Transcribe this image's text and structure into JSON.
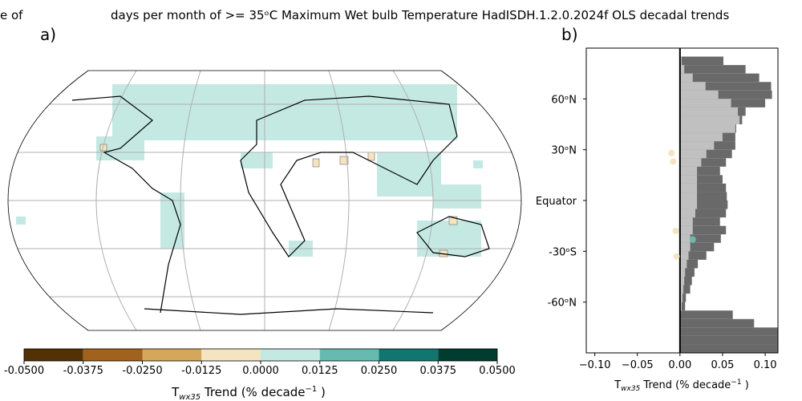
{
  "chart_data": [
    {
      "type": "map",
      "title": "days per month of >= 35ᵒC Maximum Wet bulb Temperature HadISDH.1.2.0.2024f OLS decadal trends",
      "left_fragment": "e of",
      "panel_label": "a)",
      "colorbar": {
        "bounds": [
          -0.05,
          -0.0375,
          -0.025,
          -0.0125,
          0,
          0.0125,
          0.025,
          0.0375,
          0.05
        ],
        "colors": [
          "#543005",
          "#a0621d",
          "#d4a75a",
          "#f5e4c0",
          "#c4e9e3",
          "#67bab0",
          "#117670",
          "#003c30"
        ],
        "xlim": [
          -0.05,
          0.05
        ],
        "xticks": [
          {
            "value": -0.05,
            "label": "-0.0500"
          },
          {
            "value": -0.0375,
            "label": "-0.0375"
          },
          {
            "value": -0.025,
            "label": "-0.0250"
          },
          {
            "value": -0.0125,
            "label": "-0.0125"
          },
          {
            "value": 0,
            "label": "0.0000"
          },
          {
            "value": 0.0125,
            "label": "0.0125"
          },
          {
            "value": 0.025,
            "label": "0.0250"
          },
          {
            "value": 0.0375,
            "label": "0.0375"
          },
          {
            "value": 0.05,
            "label": "0.0500"
          }
        ],
        "xlabel": {
          "main": "T",
          "sub": "wx35",
          "text": " Trend (% decade",
          "sup": "−1",
          "end": " )"
        }
      }
    },
    {
      "type": "profile",
      "panel_label": "b)",
      "y": [
        82.5,
        77.5,
        72.5,
        67.5,
        62.5,
        57.5,
        52.5,
        47.5,
        42.5,
        37.5,
        32.5,
        27.5,
        22.5,
        17.5,
        12.5,
        7.5,
        2.5,
        -2.5,
        -7.5,
        -12.5,
        -17.5,
        -22.5,
        -27.5,
        -32.5,
        -37.5,
        -42.5,
        -47.5,
        -52.5,
        -57.5,
        -62.5,
        -67.5,
        -72.5,
        -77.5,
        -82.5,
        -87.5
      ],
      "series": [
        {
          "color": "#696969",
          "values": [
            0.051,
            0.077,
            0.093,
            0.107,
            0.108,
            0.1,
            0.077,
            0.073,
            0.066,
            0.065,
            0.065,
            0.061,
            0.054,
            0.047,
            0.05,
            0.054,
            0.055,
            0.056,
            0.054,
            0.047,
            0.054,
            0.048,
            0.04,
            0.031,
            0.021,
            0.017,
            0.014,
            0.012,
            0.007,
            0.006,
            0.062,
            0.087,
            0.12,
            0.12,
            0.12
          ]
        },
        {
          "color": "#c0c0c0",
          "values": [
            0.002,
            0.005,
            0.015,
            0.03,
            0.045,
            0.06,
            0.068,
            0.07,
            0.065,
            0.05,
            0.04,
            0.031,
            0.025,
            0.02,
            0.02,
            0.02,
            0.02,
            0.02,
            0.018,
            0.015,
            0.015,
            0.012,
            0.012,
            0.01,
            0.008,
            0.006,
            0.005,
            0.004,
            0.003,
            0.002,
            0,
            0,
            0,
            0,
            0
          ]
        }
      ],
      "points": {
        "x": [
          -0.01,
          -0.008,
          -0.005,
          0.015,
          -0.004
        ],
        "y": [
          28,
          23,
          -18,
          -23,
          -33
        ],
        "colors": [
          "#f5e4c0",
          "#f5e4c0",
          "#f5e4c0",
          "#67bab0",
          "#f5e4c0"
        ]
      },
      "xlim": [
        -0.11,
        0.115
      ],
      "ylim": [
        -90,
        90
      ],
      "xticks": [
        {
          "value": -0.1,
          "label": "−0.10"
        },
        {
          "value": -0.05,
          "label": "−0.05"
        },
        {
          "value": 0,
          "label": "0.00"
        },
        {
          "value": 0.05,
          "label": "0.05"
        },
        {
          "value": 0.1,
          "label": "0.10"
        }
      ],
      "yticks": [
        {
          "value": 60,
          "label": "60ᵒN"
        },
        {
          "value": 30,
          "label": "30ᵒN"
        },
        {
          "value": 0,
          "label": "Equator"
        },
        {
          "value": -30,
          "label": "-30ᵒS"
        },
        {
          "value": -60,
          "label": "-60ᵒN"
        }
      ],
      "xlabel": {
        "main": "T",
        "sub": "wx35",
        "text": " Trend (% decade",
        "sup": "−1",
        "end": " )"
      }
    }
  ]
}
